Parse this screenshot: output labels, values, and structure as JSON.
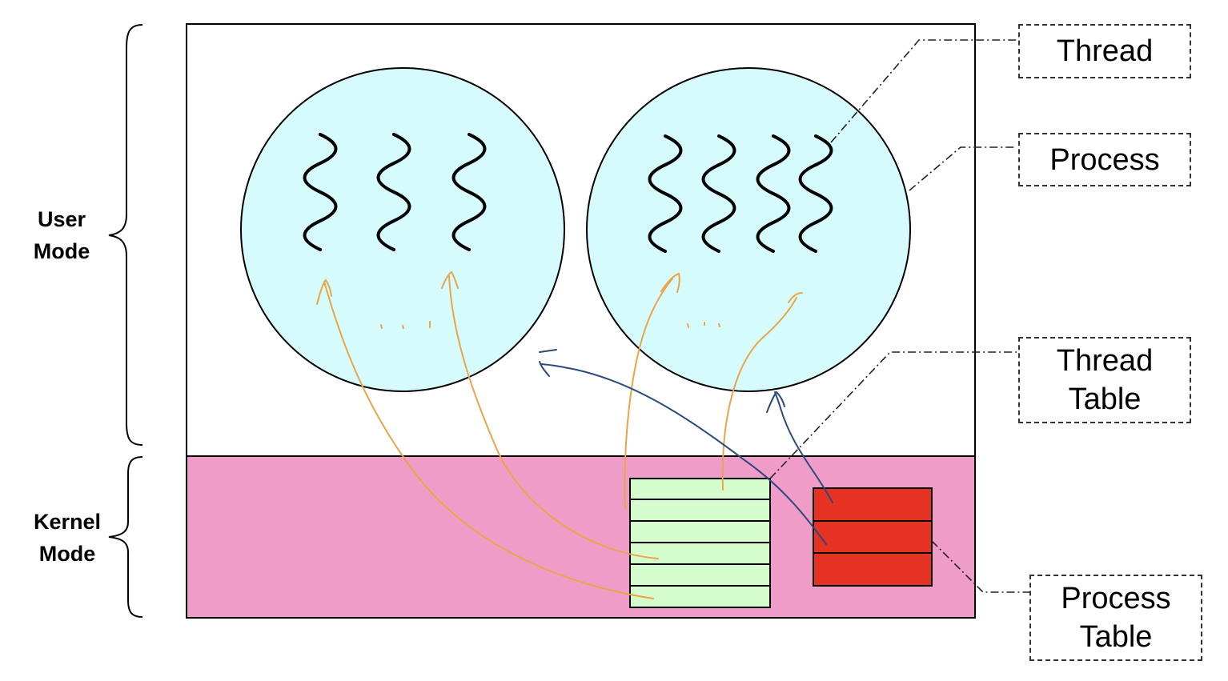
{
  "modes": {
    "user": {
      "line1": "User",
      "line2": "Mode"
    },
    "kernel": {
      "line1": "Kernel",
      "line2": "Mode"
    }
  },
  "callouts": {
    "thread": {
      "line1": "Thread"
    },
    "process": {
      "line1": "Process"
    },
    "thread_table": {
      "line1": "Thread",
      "line2": "Table"
    },
    "process_table": {
      "line1": "Process",
      "line2": "Table"
    }
  },
  "counts": {
    "left_process_threads": 3,
    "right_process_threads": 4,
    "thread_table_rows": 6,
    "process_table_rows": 3
  },
  "colors": {
    "user_space_fill": "#ffffff",
    "kernel_space_fill": "#f09cc9",
    "process_fill": "#d6fbfc",
    "thread_table_fill": "#d5fccc",
    "process_table_fill": "#e53222",
    "thread_link_stroke": "#eaa548",
    "process_link_stroke": "#2d4a7a"
  }
}
